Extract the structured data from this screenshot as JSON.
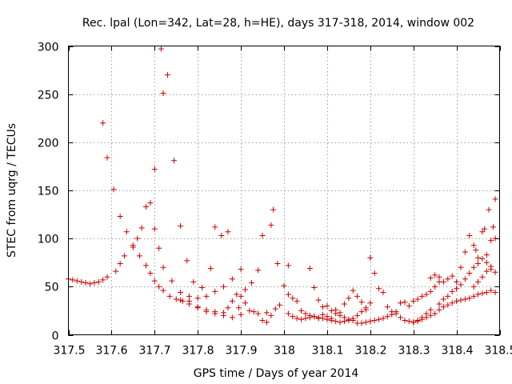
{
  "chart_data": {
    "type": "scatter",
    "title": "Rec. lpal (Lon=342, Lat=28, h=HE), days 317-318, 2014, window 002",
    "xlabel": "GPS time / Days of year 2014",
    "ylabel": "STEC from uqrg / TECUs",
    "xlim": [
      317.5,
      318.5
    ],
    "ylim": [
      0,
      300
    ],
    "xticks": [
      "317.5",
      "317.6",
      "317.7",
      "317.8",
      "317.9",
      "318",
      "318.1",
      "318.2",
      "318.3",
      "318.4",
      "318.5"
    ],
    "yticks": [
      "0",
      "50",
      "100",
      "150",
      "200",
      "250",
      "300"
    ],
    "grid": true,
    "marker": "plus",
    "color": "#cc0000",
    "points": [
      [
        317.5,
        58
      ],
      [
        317.51,
        57
      ],
      [
        317.52,
        56
      ],
      [
        317.53,
        55
      ],
      [
        317.54,
        54
      ],
      [
        317.55,
        53
      ],
      [
        317.56,
        54
      ],
      [
        317.57,
        55
      ],
      [
        317.58,
        57
      ],
      [
        317.59,
        60
      ],
      [
        317.61,
        66
      ],
      [
        317.62,
        74
      ],
      [
        317.63,
        82
      ],
      [
        317.65,
        91
      ],
      [
        317.66,
        100
      ],
      [
        317.67,
        111
      ],
      [
        317.68,
        133
      ],
      [
        317.69,
        137
      ],
      [
        317.7,
        110
      ],
      [
        317.71,
        90
      ],
      [
        317.72,
        70
      ],
      [
        317.74,
        56
      ],
      [
        317.76,
        44
      ],
      [
        317.78,
        40
      ],
      [
        317.8,
        38
      ],
      [
        317.82,
        40
      ],
      [
        317.84,
        45
      ],
      [
        317.86,
        50
      ],
      [
        317.88,
        58
      ],
      [
        317.9,
        68
      ],
      [
        317.58,
        220
      ],
      [
        317.59,
        184
      ],
      [
        317.605,
        151
      ],
      [
        317.62,
        123
      ],
      [
        317.635,
        107
      ],
      [
        317.65,
        93
      ],
      [
        317.665,
        82
      ],
      [
        317.68,
        72
      ],
      [
        317.69,
        64
      ],
      [
        317.7,
        56
      ],
      [
        317.71,
        50
      ],
      [
        317.72,
        46
      ],
      [
        317.735,
        40
      ],
      [
        317.75,
        37
      ],
      [
        317.765,
        35
      ],
      [
        317.78,
        32
      ],
      [
        317.8,
        29
      ],
      [
        317.82,
        26
      ],
      [
        317.84,
        24
      ],
      [
        317.86,
        23
      ],
      [
        317.715,
        297
      ],
      [
        317.72,
        251
      ],
      [
        317.73,
        270
      ],
      [
        317.7,
        172
      ],
      [
        317.745,
        181
      ],
      [
        317.76,
        113
      ],
      [
        317.775,
        77
      ],
      [
        317.79,
        55
      ],
      [
        317.81,
        49
      ],
      [
        317.83,
        69
      ],
      [
        317.84,
        112
      ],
      [
        317.855,
        103
      ],
      [
        317.87,
        107
      ],
      [
        317.895,
        28
      ],
      [
        317.91,
        47
      ],
      [
        317.925,
        54
      ],
      [
        317.94,
        67
      ],
      [
        317.95,
        103
      ],
      [
        317.97,
        114
      ],
      [
        317.975,
        130
      ],
      [
        317.985,
        74
      ],
      [
        317.76,
        36
      ],
      [
        317.78,
        35
      ],
      [
        317.8,
        28
      ],
      [
        317.82,
        24
      ],
      [
        317.84,
        22
      ],
      [
        317.86,
        20
      ],
      [
        317.88,
        18
      ],
      [
        317.9,
        21
      ],
      [
        317.92,
        25
      ],
      [
        317.94,
        22
      ],
      [
        317.96,
        23
      ],
      [
        317.98,
        27
      ],
      [
        317.87,
        28
      ],
      [
        317.88,
        35
      ],
      [
        317.89,
        42
      ],
      [
        317.9,
        40
      ],
      [
        317.91,
        33
      ],
      [
        317.93,
        24
      ],
      [
        317.95,
        15
      ],
      [
        317.96,
        13
      ],
      [
        317.97,
        20
      ],
      [
        317.99,
        31
      ],
      [
        318.0,
        51
      ],
      [
        318.01,
        42
      ],
      [
        318.02,
        38
      ],
      [
        318.03,
        35
      ],
      [
        318.04,
        25
      ],
      [
        318.05,
        22
      ],
      [
        318.06,
        20
      ],
      [
        318.07,
        19
      ],
      [
        318.08,
        17
      ],
      [
        318.09,
        21
      ],
      [
        318.1,
        30
      ],
      [
        318.11,
        25
      ],
      [
        318.12,
        22
      ],
      [
        318.13,
        20
      ],
      [
        318.14,
        18
      ],
      [
        318.15,
        16
      ],
      [
        318.16,
        15
      ],
      [
        318.01,
        22
      ],
      [
        318.02,
        19
      ],
      [
        318.03,
        17
      ],
      [
        318.04,
        16
      ],
      [
        318.05,
        17
      ],
      [
        318.06,
        18
      ],
      [
        318.07,
        19
      ],
      [
        318.08,
        18
      ],
      [
        318.09,
        17
      ],
      [
        318.1,
        16
      ],
      [
        318.11,
        15
      ],
      [
        318.12,
        14
      ],
      [
        318.13,
        13
      ],
      [
        318.14,
        14
      ],
      [
        318.15,
        15
      ],
      [
        318.16,
        17
      ],
      [
        318.17,
        20
      ],
      [
        318.18,
        24
      ],
      [
        318.19,
        28
      ],
      [
        318.2,
        33
      ],
      [
        318.01,
        72
      ],
      [
        318.06,
        69
      ],
      [
        318.07,
        49
      ],
      [
        318.08,
        36
      ],
      [
        318.09,
        29
      ],
      [
        318.1,
        19
      ],
      [
        318.11,
        17
      ],
      [
        318.12,
        26
      ],
      [
        318.13,
        23
      ],
      [
        318.14,
        32
      ],
      [
        318.15,
        38
      ],
      [
        318.16,
        46
      ],
      [
        318.17,
        40
      ],
      [
        318.18,
        34
      ],
      [
        318.19,
        26
      ],
      [
        318.2,
        80
      ],
      [
        318.21,
        64
      ],
      [
        318.22,
        48
      ],
      [
        318.23,
        44
      ],
      [
        318.24,
        29
      ],
      [
        318.25,
        24
      ],
      [
        318.26,
        22
      ],
      [
        318.27,
        18
      ],
      [
        318.28,
        15
      ],
      [
        318.29,
        14
      ],
      [
        318.3,
        13
      ],
      [
        318.31,
        15
      ],
      [
        318.32,
        18
      ],
      [
        318.33,
        22
      ],
      [
        318.34,
        26
      ],
      [
        318.17,
        12
      ],
      [
        318.18,
        12
      ],
      [
        318.19,
        13
      ],
      [
        318.2,
        14
      ],
      [
        318.21,
        15
      ],
      [
        318.22,
        16
      ],
      [
        318.23,
        17
      ],
      [
        318.24,
        19
      ],
      [
        318.25,
        21
      ],
      [
        318.26,
        24
      ],
      [
        318.27,
        33
      ],
      [
        318.28,
        34
      ],
      [
        318.29,
        30
      ],
      [
        318.3,
        35
      ],
      [
        318.31,
        37
      ],
      [
        318.32,
        40
      ],
      [
        318.33,
        42
      ],
      [
        318.34,
        45
      ],
      [
        318.35,
        50
      ],
      [
        318.36,
        55
      ],
      [
        318.34,
        59
      ],
      [
        318.35,
        62
      ],
      [
        318.36,
        60
      ],
      [
        318.37,
        55
      ],
      [
        318.38,
        58
      ],
      [
        318.39,
        61
      ],
      [
        318.4,
        55
      ],
      [
        318.41,
        70
      ],
      [
        318.42,
        86
      ],
      [
        318.43,
        103
      ],
      [
        318.44,
        93
      ],
      [
        318.445,
        88
      ],
      [
        318.45,
        80
      ],
      [
        318.46,
        107
      ],
      [
        318.465,
        110
      ],
      [
        318.47,
        75
      ],
      [
        318.475,
        130
      ],
      [
        318.48,
        98
      ],
      [
        318.485,
        112
      ],
      [
        318.49,
        141
      ],
      [
        318.49,
        65
      ],
      [
        318.48,
        46
      ],
      [
        318.47,
        44
      ],
      [
        318.46,
        43
      ],
      [
        318.45,
        42
      ],
      [
        318.44,
        40
      ],
      [
        318.43,
        38
      ],
      [
        318.42,
        37
      ],
      [
        318.41,
        36
      ],
      [
        318.4,
        35
      ],
      [
        318.39,
        33
      ],
      [
        318.38,
        31
      ],
      [
        318.37,
        29
      ],
      [
        318.36,
        26
      ],
      [
        318.35,
        22
      ],
      [
        318.34,
        20
      ],
      [
        318.33,
        18
      ],
      [
        318.32,
        16
      ],
      [
        318.31,
        14
      ],
      [
        318.3,
        13
      ],
      [
        318.36,
        32
      ],
      [
        318.37,
        37
      ],
      [
        318.38,
        40
      ],
      [
        318.39,
        45
      ],
      [
        318.4,
        48
      ],
      [
        318.41,
        52
      ],
      [
        318.42,
        58
      ],
      [
        318.43,
        64
      ],
      [
        318.44,
        70
      ],
      [
        318.45,
        74
      ],
      [
        318.46,
        79
      ],
      [
        318.47,
        83
      ],
      [
        318.48,
        68
      ],
      [
        318.49,
        100
      ],
      [
        318.44,
        50
      ],
      [
        318.45,
        55
      ],
      [
        318.46,
        60
      ],
      [
        318.47,
        66
      ],
      [
        318.48,
        71
      ],
      [
        318.49,
        44
      ]
    ]
  }
}
